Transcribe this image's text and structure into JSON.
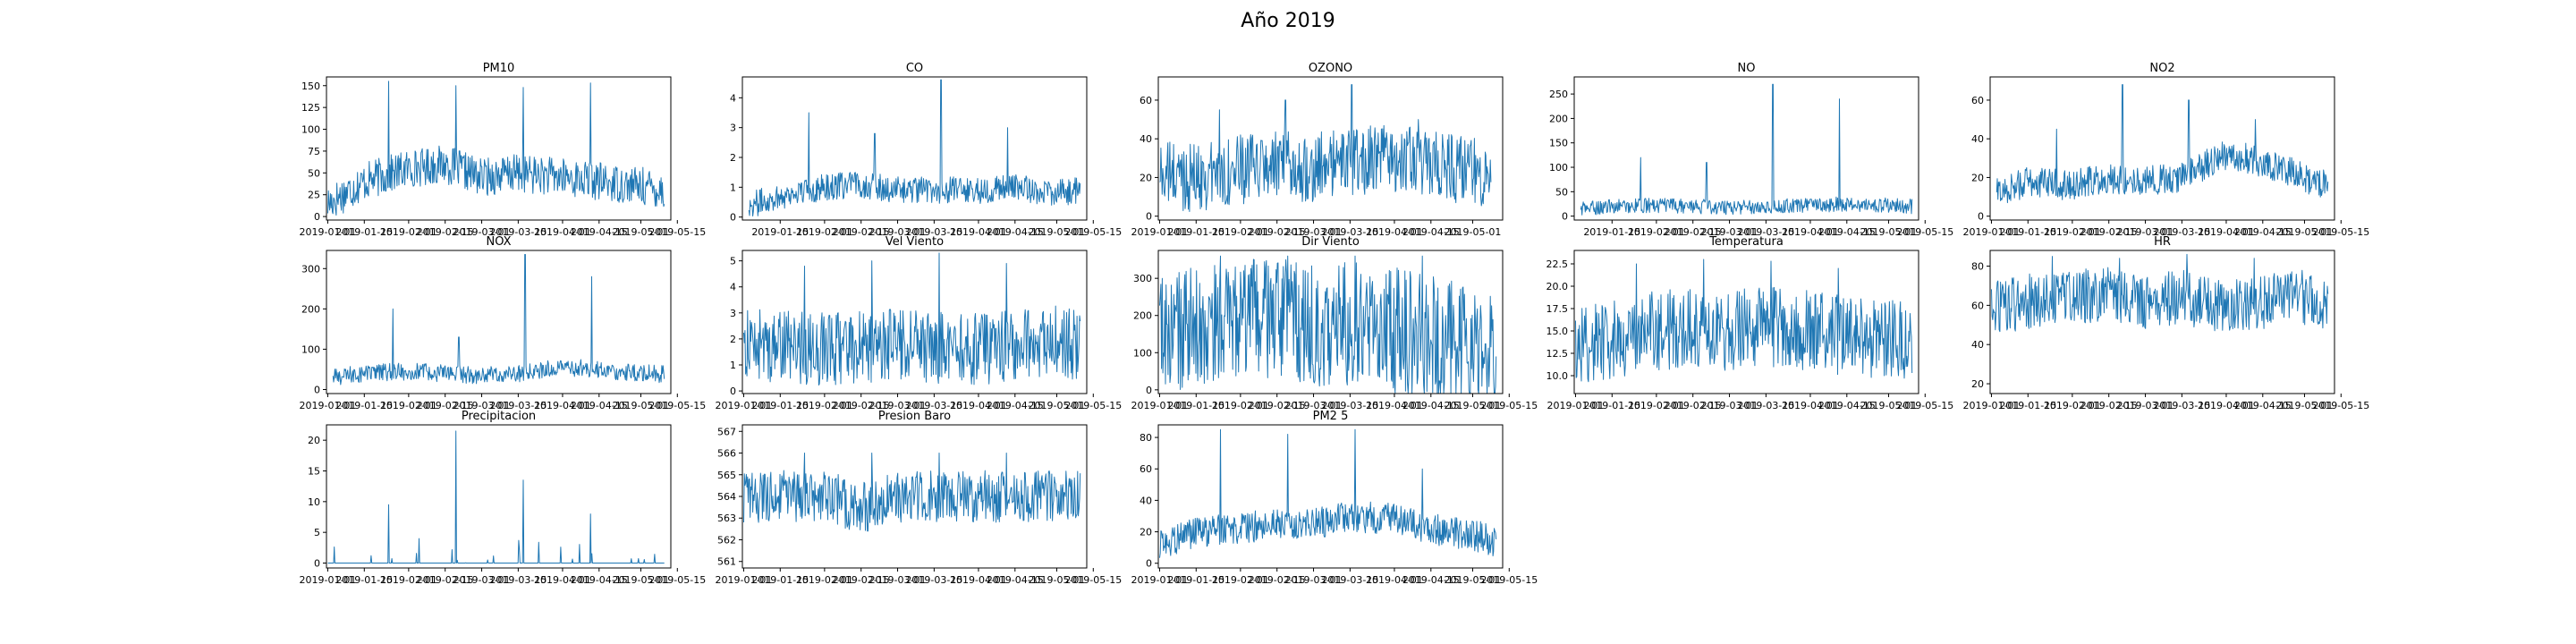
{
  "figure": {
    "title": "Año 2019"
  },
  "chart_data": [
    {
      "name": "PM10",
      "type": "line",
      "title": "PM10",
      "x_range": [
        "2019-01-01",
        "2019-05-10"
      ],
      "x_ticks": [
        "2019-01-01",
        "2019-01-15",
        "2019-02-01",
        "2019-02-15",
        "2019-03-01",
        "2019-03-15",
        "2019-04-01",
        "2019-04-15",
        "2019-05-01",
        "2019-05-15"
      ],
      "ylim": [
        -4,
        160
      ],
      "yticks": [
        0,
        25,
        50,
        75,
        100,
        125,
        150
      ],
      "color": "#1f77b4",
      "ysum": 38,
      "yamp": 22,
      "ypeaks": [
        155,
        150,
        148,
        153
      ],
      "series": [
        {
          "x": [
            "2019-01-01",
            "2019-01-15",
            "2019-02-01",
            "2019-02-15",
            "2019-03-01",
            "2019-03-15",
            "2019-04-01",
            "2019-04-15",
            "2019-05-01",
            "2019-05-10"
          ],
          "y": [
            15,
            40,
            55,
            60,
            45,
            50,
            45,
            40,
            35,
            30
          ]
        }
      ]
    },
    {
      "name": "CO",
      "type": "line",
      "title": "CO",
      "x_range": [
        "2019-01-03",
        "2019-05-10"
      ],
      "x_ticks": [
        "2019-01-15",
        "2019-02-01",
        "2019-02-15",
        "2019-03-01",
        "2019-03-15",
        "2019-04-01",
        "2019-04-15",
        "2019-05-01",
        "2019-05-15"
      ],
      "ylim": [
        -0.1,
        4.7
      ],
      "yticks": [
        0,
        1,
        2,
        3,
        4
      ],
      "color": "#1f77b4",
      "ysum": 0.9,
      "yamp": 0.45,
      "ypeaks": [
        3.5,
        2.8,
        4.6,
        3.0
      ],
      "series": [
        {
          "x": [
            "2019-01-03",
            "2019-01-15",
            "2019-02-01",
            "2019-02-15",
            "2019-03-01",
            "2019-03-15",
            "2019-04-01",
            "2019-04-15",
            "2019-05-01",
            "2019-05-10"
          ],
          "y": [
            0.4,
            0.7,
            1.0,
            1.1,
            0.9,
            0.9,
            0.9,
            1.0,
            0.8,
            0.9
          ]
        }
      ]
    },
    {
      "name": "OZONO",
      "type": "line",
      "title": "OZONO",
      "x_range": [
        "2019-01-01",
        "2019-05-08"
      ],
      "x_ticks": [
        "2019-01-01",
        "2019-01-15",
        "2019-02-01",
        "2019-02-15",
        "2019-03-01",
        "2019-03-15",
        "2019-04-01",
        "2019-04-15",
        "2019-05-01"
      ],
      "ylim": [
        -2,
        72
      ],
      "yticks": [
        0,
        20,
        40,
        60
      ],
      "color": "#1f77b4",
      "ysum": 22,
      "yamp": 18,
      "ypeaks": [
        55,
        60,
        68,
        50
      ],
      "series": [
        {
          "x": [
            "2019-01-01",
            "2019-01-15",
            "2019-02-01",
            "2019-02-15",
            "2019-03-01",
            "2019-03-15",
            "2019-04-01",
            "2019-04-15",
            "2019-05-01",
            "2019-05-08"
          ],
          "y": [
            22,
            20,
            24,
            26,
            25,
            28,
            30,
            26,
            24,
            22
          ]
        }
      ]
    },
    {
      "name": "NO",
      "type": "line",
      "title": "NO",
      "x_range": [
        "2019-01-03",
        "2019-05-10"
      ],
      "x_ticks": [
        "2019-01-15",
        "2019-02-01",
        "2019-02-15",
        "2019-03-01",
        "2019-03-15",
        "2019-04-01",
        "2019-04-15",
        "2019-05-01",
        "2019-05-15"
      ],
      "ylim": [
        -8,
        285
      ],
      "yticks": [
        0,
        50,
        100,
        150,
        200,
        250
      ],
      "color": "#1f77b4",
      "ysum": 18,
      "yamp": 15,
      "ypeaks": [
        120,
        110,
        270,
        240
      ],
      "series": [
        {
          "x": [
            "2019-01-03",
            "2019-01-15",
            "2019-02-01",
            "2019-02-15",
            "2019-03-01",
            "2019-03-15",
            "2019-04-01",
            "2019-04-15",
            "2019-05-01",
            "2019-05-10"
          ],
          "y": [
            15,
            20,
            22,
            20,
            18,
            20,
            22,
            25,
            22,
            20
          ]
        }
      ]
    },
    {
      "name": "NO2",
      "type": "line",
      "title": "NO2",
      "x_range": [
        "2019-01-03",
        "2019-05-10"
      ],
      "x_ticks": [
        "2019-01-01",
        "2019-01-15",
        "2019-02-01",
        "2019-02-15",
        "2019-03-01",
        "2019-03-15",
        "2019-04-01",
        "2019-04-15",
        "2019-05-01",
        "2019-05-15"
      ],
      "ylim": [
        -2,
        72
      ],
      "yticks": [
        0,
        20,
        40,
        60
      ],
      "color": "#1f77b4",
      "ysum": 16,
      "yamp": 8,
      "ypeaks": [
        45,
        68,
        60,
        50
      ],
      "series": [
        {
          "x": [
            "2019-01-03",
            "2019-01-15",
            "2019-02-01",
            "2019-02-15",
            "2019-03-01",
            "2019-03-15",
            "2019-04-01",
            "2019-04-15",
            "2019-05-01",
            "2019-05-10"
          ],
          "y": [
            12,
            18,
            16,
            20,
            18,
            20,
            32,
            28,
            20,
            16
          ]
        }
      ]
    },
    {
      "name": "NOX",
      "type": "line",
      "title": "NOX",
      "x_range": [
        "2019-01-03",
        "2019-05-10"
      ],
      "x_ticks": [
        "2019-01-01",
        "2019-01-15",
        "2019-02-01",
        "2019-02-15",
        "2019-03-01",
        "2019-03-15",
        "2019-04-01",
        "2019-04-15",
        "2019-05-01",
        "2019-05-15"
      ],
      "ylim": [
        -10,
        345
      ],
      "yticks": [
        0,
        100,
        200,
        300
      ],
      "color": "#1f77b4",
      "ysum": 38,
      "yamp": 22,
      "ypeaks": [
        200,
        130,
        335,
        280
      ],
      "series": [
        {
          "x": [
            "2019-01-03",
            "2019-01-15",
            "2019-02-01",
            "2019-02-15",
            "2019-03-01",
            "2019-03-15",
            "2019-04-01",
            "2019-04-15",
            "2019-05-01",
            "2019-05-10"
          ],
          "y": [
            30,
            40,
            45,
            40,
            35,
            40,
            55,
            50,
            40,
            38
          ]
        }
      ]
    },
    {
      "name": "Vel Viento",
      "type": "line",
      "title": "Vel Viento",
      "x_range": [
        "2019-01-01",
        "2019-05-10"
      ],
      "x_ticks": [
        "2019-01-01",
        "2019-01-15",
        "2019-02-01",
        "2019-02-15",
        "2019-03-01",
        "2019-03-15",
        "2019-04-01",
        "2019-04-15",
        "2019-05-01",
        "2019-05-15"
      ],
      "ylim": [
        -0.1,
        5.4
      ],
      "yticks": [
        0,
        1,
        2,
        3,
        4,
        5
      ],
      "color": "#1f77b4",
      "ysum": 1.6,
      "yamp": 1.4,
      "ypeaks": [
        4.8,
        5.0,
        5.3,
        4.9
      ],
      "series": [
        {
          "x": [
            "2019-01-01",
            "2019-01-15",
            "2019-02-01",
            "2019-02-15",
            "2019-03-01",
            "2019-03-15",
            "2019-04-01",
            "2019-04-15",
            "2019-05-01",
            "2019-05-10"
          ],
          "y": [
            1.8,
            1.7,
            1.6,
            1.7,
            1.8,
            1.7,
            1.6,
            1.8,
            1.9,
            1.7
          ]
        }
      ]
    },
    {
      "name": "Dir Viento",
      "type": "line",
      "title": "Dir Viento",
      "x_range": [
        "2019-01-01",
        "2019-05-10"
      ],
      "x_ticks": [
        "2019-01-01",
        "2019-01-15",
        "2019-02-01",
        "2019-02-15",
        "2019-03-01",
        "2019-03-15",
        "2019-04-01",
        "2019-04-15",
        "2019-05-01",
        "2019-05-15"
      ],
      "ylim": [
        -10,
        375
      ],
      "yticks": [
        0,
        100,
        200,
        300
      ],
      "color": "#1f77b4",
      "ysum": 180,
      "yamp": 170,
      "ypeaks": [
        360,
        360,
        360,
        360
      ],
      "series": [
        {
          "x": [
            "2019-01-01",
            "2019-01-15",
            "2019-02-01",
            "2019-02-15",
            "2019-03-01",
            "2019-03-15",
            "2019-04-01",
            "2019-04-15",
            "2019-05-01",
            "2019-05-10"
          ],
          "y": [
            150,
            160,
            180,
            190,
            170,
            180,
            160,
            140,
            110,
            100
          ]
        }
      ]
    },
    {
      "name": "Temperatura",
      "type": "line",
      "title": "Temperatura",
      "x_range": [
        "2019-01-01",
        "2019-05-10"
      ],
      "x_ticks": [
        "2019-01-01",
        "2019-01-15",
        "2019-02-01",
        "2019-02-15",
        "2019-03-01",
        "2019-03-15",
        "2019-04-01",
        "2019-04-15",
        "2019-05-01",
        "2019-05-15"
      ],
      "ylim": [
        8.0,
        24.0
      ],
      "yticks": [
        10.0,
        12.5,
        15.0,
        17.5,
        20.0,
        22.5
      ],
      "color": "#1f77b4",
      "ysum": 14.5,
      "yamp": 4.5,
      "ypeaks": [
        22.5,
        23.0,
        22.8,
        22.0
      ],
      "series": [
        {
          "x": [
            "2019-01-01",
            "2019-01-15",
            "2019-02-01",
            "2019-02-15",
            "2019-03-01",
            "2019-03-15",
            "2019-04-01",
            "2019-04-15",
            "2019-05-01",
            "2019-05-10"
          ],
          "y": [
            13.5,
            14.0,
            15.0,
            15.5,
            15.0,
            15.5,
            15.0,
            14.5,
            14.0,
            14.0
          ]
        }
      ]
    },
    {
      "name": "HR",
      "type": "line",
      "title": "HR",
      "x_range": [
        "2019-01-01",
        "2019-05-10"
      ],
      "x_ticks": [
        "2019-01-01",
        "2019-01-15",
        "2019-02-01",
        "2019-02-15",
        "2019-03-01",
        "2019-03-15",
        "2019-04-01",
        "2019-04-15",
        "2019-05-01",
        "2019-05-15"
      ],
      "ylim": [
        15,
        88
      ],
      "yticks": [
        20,
        40,
        60,
        80
      ],
      "color": "#1f77b4",
      "ysum": 62,
      "yamp": 14,
      "ypeaks": [
        85,
        84,
        86,
        84
      ],
      "series": [
        {
          "x": [
            "2019-01-01",
            "2019-01-15",
            "2019-02-01",
            "2019-02-15",
            "2019-03-01",
            "2019-03-15",
            "2019-04-01",
            "2019-04-15",
            "2019-05-01",
            "2019-05-10"
          ],
          "y": [
            58,
            62,
            64,
            66,
            62,
            64,
            60,
            62,
            64,
            60
          ]
        }
      ]
    },
    {
      "name": "Precipitacion",
      "type": "line",
      "title": "Precipitacion",
      "x_range": [
        "2019-01-01",
        "2019-05-10"
      ],
      "x_ticks": [
        "2019-01-01",
        "2019-01-15",
        "2019-02-01",
        "2019-02-15",
        "2019-03-01",
        "2019-03-15",
        "2019-04-01",
        "2019-04-15",
        "2019-05-01",
        "2019-05-15"
      ],
      "ylim": [
        -0.8,
        22.5
      ],
      "yticks": [
        0,
        5,
        10,
        15,
        20
      ],
      "color": "#1f77b4",
      "ysum": 0,
      "yamp": 0,
      "ypeaks": [
        9.5,
        21.5,
        13.5,
        8.0
      ],
      "series": [
        {
          "x": [
            "2019-01-01",
            "2019-01-15",
            "2019-02-01",
            "2019-02-15",
            "2019-03-01",
            "2019-03-15",
            "2019-04-01",
            "2019-04-15",
            "2019-05-01",
            "2019-05-10"
          ],
          "y": [
            0,
            0,
            0,
            0,
            0,
            0,
            0,
            0,
            0,
            0
          ]
        }
      ]
    },
    {
      "name": "Presion Baro",
      "type": "line",
      "title": "Presion Baro",
      "x_range": [
        "2019-01-01",
        "2019-05-10"
      ],
      "x_ticks": [
        "2019-01-01",
        "2019-01-15",
        "2019-02-01",
        "2019-02-15",
        "2019-03-01",
        "2019-03-15",
        "2019-04-01",
        "2019-04-15",
        "2019-05-01",
        "2019-05-15"
      ],
      "ylim": [
        560.7,
        567.3
      ],
      "yticks": [
        561,
        562,
        563,
        564,
        565,
        566,
        567
      ],
      "color": "#1f77b4",
      "ysum": 564,
      "yamp": 1.2,
      "ypeaks": [
        566,
        566,
        566,
        566
      ],
      "series": [
        {
          "x": [
            "2019-01-01",
            "2019-01-15",
            "2019-02-01",
            "2019-02-15",
            "2019-03-01",
            "2019-03-15",
            "2019-04-01",
            "2019-04-15",
            "2019-05-01",
            "2019-05-10"
          ],
          "y": [
            564,
            564,
            564,
            563.5,
            564,
            564,
            564,
            564,
            564,
            564
          ]
        }
      ]
    },
    {
      "name": "PM2 5",
      "type": "line",
      "title": "PM2 5",
      "x_range": [
        "2019-01-01",
        "2019-05-10"
      ],
      "x_ticks": [
        "2019-01-01",
        "2019-01-15",
        "2019-02-01",
        "2019-02-15",
        "2019-03-01",
        "2019-03-15",
        "2019-04-01",
        "2019-04-15",
        "2019-05-01",
        "2019-05-15"
      ],
      "ylim": [
        -3,
        88
      ],
      "yticks": [
        0,
        20,
        40,
        60,
        80
      ],
      "color": "#1f77b4",
      "ysum": 18,
      "yamp": 10,
      "ypeaks": [
        85,
        82,
        85,
        60
      ],
      "series": [
        {
          "x": [
            "2019-01-01",
            "2019-01-15",
            "2019-02-01",
            "2019-02-15",
            "2019-03-01",
            "2019-03-15",
            "2019-04-01",
            "2019-04-15",
            "2019-05-01",
            "2019-05-10"
          ],
          "y": [
            12,
            20,
            22,
            26,
            25,
            30,
            28,
            22,
            18,
            14
          ]
        }
      ]
    }
  ]
}
